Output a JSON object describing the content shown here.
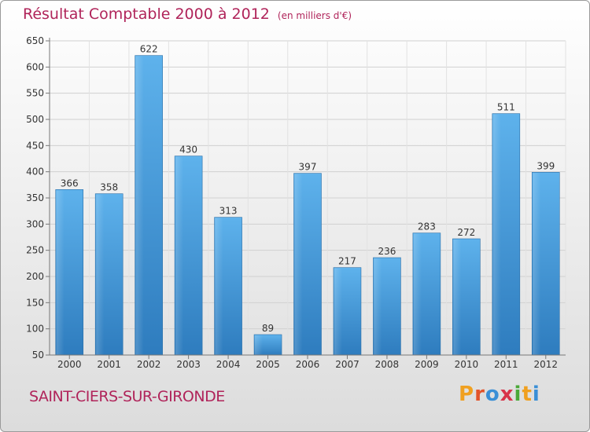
{
  "chart_data": {
    "type": "bar",
    "title": "Résultat Comptable 2000 à 2012",
    "unit_note": "(en milliers d'€)",
    "categories": [
      "2000",
      "2001",
      "2002",
      "2003",
      "2004",
      "2005",
      "2006",
      "2007",
      "2008",
      "2009",
      "2010",
      "2011",
      "2012"
    ],
    "values": [
      366,
      358,
      622,
      430,
      313,
      89,
      397,
      217,
      236,
      283,
      272,
      511,
      399
    ],
    "ylim": [
      50,
      650
    ],
    "yticks": [
      50,
      100,
      150,
      200,
      250,
      300,
      350,
      400,
      450,
      500,
      550,
      600,
      650
    ],
    "grid": true,
    "xlabel": "",
    "ylabel": ""
  },
  "footer": {
    "commune": "SAINT-CIERS-SUR-GIRONDE",
    "brand_letters": [
      "P",
      "r",
      "o",
      "x",
      "i",
      "t",
      "i"
    ]
  },
  "colors": {
    "title": "#b0245a",
    "bar_light": "#5dafe9",
    "bar_dark": "#2f7fc0",
    "brand": [
      "#f0a020",
      "#e2532a",
      "#3a8fd6",
      "#d8344a",
      "#4aa838",
      "#f0a020",
      "#3a8fd6"
    ]
  }
}
